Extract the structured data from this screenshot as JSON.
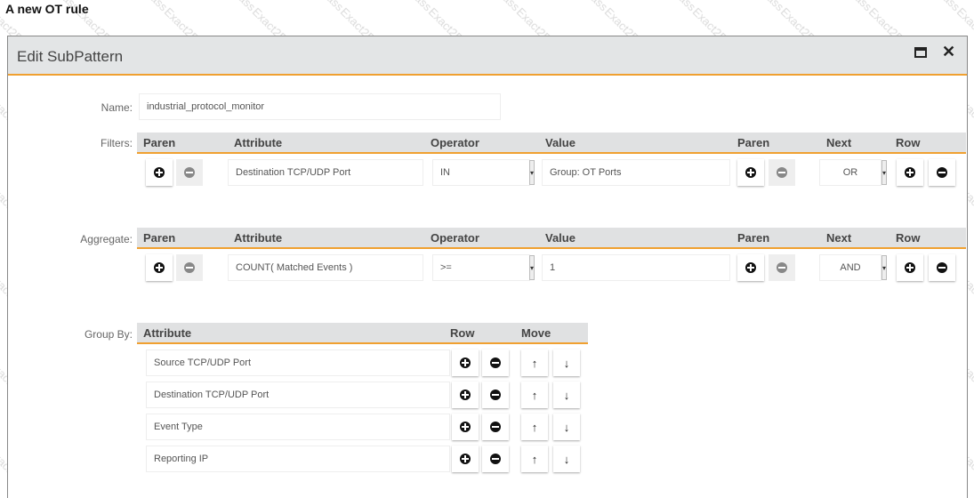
{
  "page_title": "A new OT rule",
  "watermark": "Exact2Pass",
  "dialog": {
    "title": "Edit SubPattern",
    "icons": [
      "maximize-icon",
      "close-icon"
    ]
  },
  "name": {
    "label": "Name:",
    "value": "industrial_protocol_monitor"
  },
  "filters": {
    "label": "Filters:",
    "headers": {
      "paren": "Paren",
      "attribute": "Attribute",
      "operator": "Operator",
      "value": "Value",
      "paren2": "Paren",
      "next": "Next",
      "row": "Row"
    },
    "row": {
      "attribute": "Destination TCP/UDP Port",
      "operator": "IN",
      "value": "Group: OT Ports",
      "next": "OR"
    }
  },
  "aggregate": {
    "label": "Aggregate:",
    "headers": {
      "paren": "Paren",
      "attribute": "Attribute",
      "operator": "Operator",
      "value": "Value",
      "paren2": "Paren",
      "next": "Next",
      "row": "Row"
    },
    "row": {
      "attribute": "COUNT( Matched Events )",
      "operator": ">=",
      "value": "1",
      "next": "AND"
    }
  },
  "group_by": {
    "label": "Group By:",
    "headers": {
      "attribute": "Attribute",
      "row": "Row",
      "move": "Move"
    },
    "rows": [
      "Source TCP/UDP Port",
      "Destination TCP/UDP Port",
      "Event Type",
      "Reporting IP"
    ]
  },
  "colors": {
    "accent": "#f0a030",
    "header_bg": "#e3e5e6"
  }
}
